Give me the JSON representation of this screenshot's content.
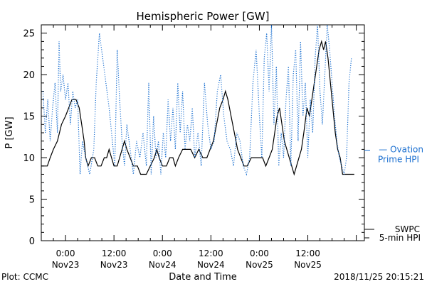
{
  "chart_data": {
    "type": "line",
    "title": "Hemispheric Power [GW]",
    "ylabel": "P [GW]",
    "xlabel": "Date and Time",
    "ylim": [
      0,
      26
    ],
    "y_ticks": [
      0,
      5,
      10,
      15,
      20,
      25
    ],
    "xlim_hours": [
      -6,
      74
    ],
    "x_ticks": [
      {
        "h": 0,
        "line1": "0:00",
        "line2": "Nov23"
      },
      {
        "h": 12,
        "line1": "12:00",
        "line2": "Nov23"
      },
      {
        "h": 24,
        "line1": "0:00",
        "line2": "Nov24"
      },
      {
        "h": 36,
        "line1": "12:00",
        "line2": "Nov24"
      },
      {
        "h": 48,
        "line1": "0:00",
        "line2": "Nov25"
      },
      {
        "h": 60,
        "line1": "12:00",
        "line2": "Nov25"
      }
    ],
    "series": [
      {
        "name_lines": [
          "SWPC",
          "5-min HPI"
        ],
        "color": "#000000",
        "style": "solid",
        "points": [
          [
            -6,
            9
          ],
          [
            -4.5,
            9
          ],
          [
            -3.8,
            10
          ],
          [
            -3,
            11
          ],
          [
            -2,
            12
          ],
          [
            -1,
            14
          ],
          [
            0,
            15
          ],
          [
            0.8,
            16
          ],
          [
            1.6,
            17
          ],
          [
            2.6,
            17
          ],
          [
            3.4,
            16
          ],
          [
            4,
            14
          ],
          [
            4.6,
            12
          ],
          [
            5,
            10
          ],
          [
            5.6,
            9
          ],
          [
            6.4,
            10
          ],
          [
            7.2,
            10
          ],
          [
            8,
            9
          ],
          [
            8.8,
            9
          ],
          [
            9.6,
            10
          ],
          [
            10.2,
            10
          ],
          [
            10.8,
            11
          ],
          [
            11.4,
            10
          ],
          [
            12,
            9
          ],
          [
            12.8,
            9
          ],
          [
            13.4,
            10
          ],
          [
            14,
            11
          ],
          [
            14.6,
            12
          ],
          [
            15.2,
            11
          ],
          [
            16,
            10
          ],
          [
            16.8,
            9
          ],
          [
            17.8,
            9
          ],
          [
            18.6,
            8
          ],
          [
            20,
            8
          ],
          [
            21,
            9
          ],
          [
            22,
            10
          ],
          [
            22.6,
            11
          ],
          [
            23.2,
            10
          ],
          [
            24,
            9
          ],
          [
            25,
            9
          ],
          [
            25.8,
            10
          ],
          [
            26.6,
            10
          ],
          [
            27.2,
            9
          ],
          [
            28,
            10
          ],
          [
            29,
            11
          ],
          [
            30,
            11
          ],
          [
            31,
            11
          ],
          [
            32,
            10
          ],
          [
            33,
            11
          ],
          [
            34,
            10
          ],
          [
            35,
            10
          ],
          [
            35.8,
            11
          ],
          [
            36.6,
            12
          ],
          [
            37.4,
            14
          ],
          [
            38.2,
            16
          ],
          [
            39,
            17
          ],
          [
            39.6,
            18
          ],
          [
            40.2,
            17
          ],
          [
            41,
            15
          ],
          [
            41.8,
            13
          ],
          [
            42.6,
            11
          ],
          [
            43.4,
            10
          ],
          [
            44.2,
            9
          ],
          [
            45,
            9
          ],
          [
            46,
            10
          ],
          [
            47,
            10
          ],
          [
            48,
            10
          ],
          [
            48.8,
            10
          ],
          [
            49.6,
            9
          ],
          [
            50.4,
            10
          ],
          [
            51.2,
            11
          ],
          [
            51.8,
            13
          ],
          [
            52.4,
            15
          ],
          [
            53,
            16
          ],
          [
            53.6,
            14
          ],
          [
            54.2,
            12
          ],
          [
            54.8,
            11
          ],
          [
            55.4,
            10
          ],
          [
            56,
            9
          ],
          [
            56.6,
            8
          ],
          [
            57.2,
            9
          ],
          [
            57.8,
            10
          ],
          [
            58.4,
            11
          ],
          [
            59,
            13
          ],
          [
            59.8,
            16
          ],
          [
            60.4,
            15
          ],
          [
            61,
            17
          ],
          [
            61.6,
            19
          ],
          [
            62.2,
            21
          ],
          [
            62.8,
            23
          ],
          [
            63.4,
            24
          ],
          [
            63.9,
            23
          ],
          [
            64.4,
            24
          ],
          [
            65,
            22
          ],
          [
            65.6,
            19
          ],
          [
            66.2,
            16
          ],
          [
            66.8,
            13
          ],
          [
            67.4,
            11
          ],
          [
            68,
            10
          ],
          [
            68.6,
            8
          ],
          [
            70,
            8
          ],
          [
            71.5,
            8
          ]
        ]
      },
      {
        "name_lines": [
          "— Ovation",
          "Prime HPI"
        ],
        "color": "#1a6fd0",
        "style": "dotted",
        "points": [
          [
            -5.6,
            18
          ],
          [
            -5,
            13
          ],
          [
            -4.4,
            17
          ],
          [
            -3.8,
            12
          ],
          [
            -3.2,
            16
          ],
          [
            -2.6,
            19
          ],
          [
            -2,
            13
          ],
          [
            -1.6,
            24
          ],
          [
            -1.2,
            18
          ],
          [
            -0.6,
            20
          ],
          [
            0,
            17
          ],
          [
            0.6,
            19
          ],
          [
            1.2,
            14
          ],
          [
            1.8,
            18
          ],
          [
            2.4,
            16
          ],
          [
            3,
            17
          ],
          [
            3.6,
            8
          ],
          [
            4.2,
            12
          ],
          [
            5,
            10
          ],
          [
            6,
            8
          ],
          [
            7,
            11
          ],
          [
            7.6,
            19
          ],
          [
            8.4,
            25
          ],
          [
            9.2,
            22
          ],
          [
            10,
            19
          ],
          [
            10.8,
            16
          ],
          [
            11.6,
            12
          ],
          [
            12.2,
            9
          ],
          [
            12.8,
            23
          ],
          [
            13.4,
            17
          ],
          [
            14,
            12
          ],
          [
            14.6,
            9
          ],
          [
            15.2,
            14
          ],
          [
            16,
            11
          ],
          [
            16.8,
            8
          ],
          [
            17.6,
            12
          ],
          [
            18.4,
            10
          ],
          [
            19.2,
            13
          ],
          [
            20,
            9
          ],
          [
            20.6,
            19
          ],
          [
            21.2,
            8
          ],
          [
            21.8,
            15
          ],
          [
            22.4,
            10
          ],
          [
            23,
            12
          ],
          [
            23.6,
            8
          ],
          [
            24.2,
            13
          ],
          [
            24.8,
            10
          ],
          [
            25.4,
            17
          ],
          [
            26,
            12
          ],
          [
            26.6,
            16
          ],
          [
            27.2,
            11
          ],
          [
            27.8,
            19
          ],
          [
            28.4,
            13
          ],
          [
            29,
            18
          ],
          [
            29.6,
            11
          ],
          [
            30.2,
            14
          ],
          [
            30.8,
            12
          ],
          [
            31.4,
            16
          ],
          [
            32,
            10
          ],
          [
            32.8,
            13
          ],
          [
            33.6,
            9
          ],
          [
            34.4,
            19
          ],
          [
            35.2,
            14
          ],
          [
            36,
            11
          ],
          [
            36.8,
            12
          ],
          [
            37.6,
            18
          ],
          [
            38.4,
            20
          ],
          [
            39.2,
            15
          ],
          [
            40,
            12
          ],
          [
            40.8,
            11
          ],
          [
            41.6,
            9
          ],
          [
            42.4,
            13
          ],
          [
            43.2,
            12
          ],
          [
            44,
            9
          ],
          [
            44.8,
            8
          ],
          [
            45.6,
            10
          ],
          [
            46.4,
            19
          ],
          [
            47.2,
            23
          ],
          [
            48,
            15
          ],
          [
            48.6,
            10
          ],
          [
            49.2,
            22
          ],
          [
            49.8,
            25
          ],
          [
            50.4,
            18
          ],
          [
            51,
            26
          ],
          [
            51.6,
            14
          ],
          [
            52.2,
            21
          ],
          [
            52.8,
            9
          ],
          [
            53.4,
            13
          ],
          [
            54,
            10
          ],
          [
            54.6,
            17
          ],
          [
            55.2,
            21
          ],
          [
            55.8,
            9
          ],
          [
            56.4,
            20
          ],
          [
            57,
            23
          ],
          [
            57.6,
            12
          ],
          [
            58.2,
            24
          ],
          [
            58.8,
            15
          ],
          [
            59.4,
            19
          ],
          [
            60,
            10
          ],
          [
            60.6,
            17
          ],
          [
            61.2,
            13
          ],
          [
            61.8,
            22
          ],
          [
            62.4,
            26
          ],
          [
            63,
            18
          ],
          [
            63.6,
            14
          ],
          [
            64.2,
            20
          ],
          [
            64.8,
            26
          ],
          [
            65.4,
            23
          ],
          [
            66,
            19
          ],
          [
            66.6,
            15
          ],
          [
            67.2,
            12
          ],
          [
            67.8,
            10
          ],
          [
            68.4,
            9
          ],
          [
            69,
            8
          ],
          [
            69.6,
            10
          ],
          [
            70.2,
            19
          ],
          [
            70.8,
            22
          ]
        ]
      }
    ],
    "plot_credit": "Plot: CCMC",
    "timestamp": "2018/11/25 20:15:21"
  }
}
